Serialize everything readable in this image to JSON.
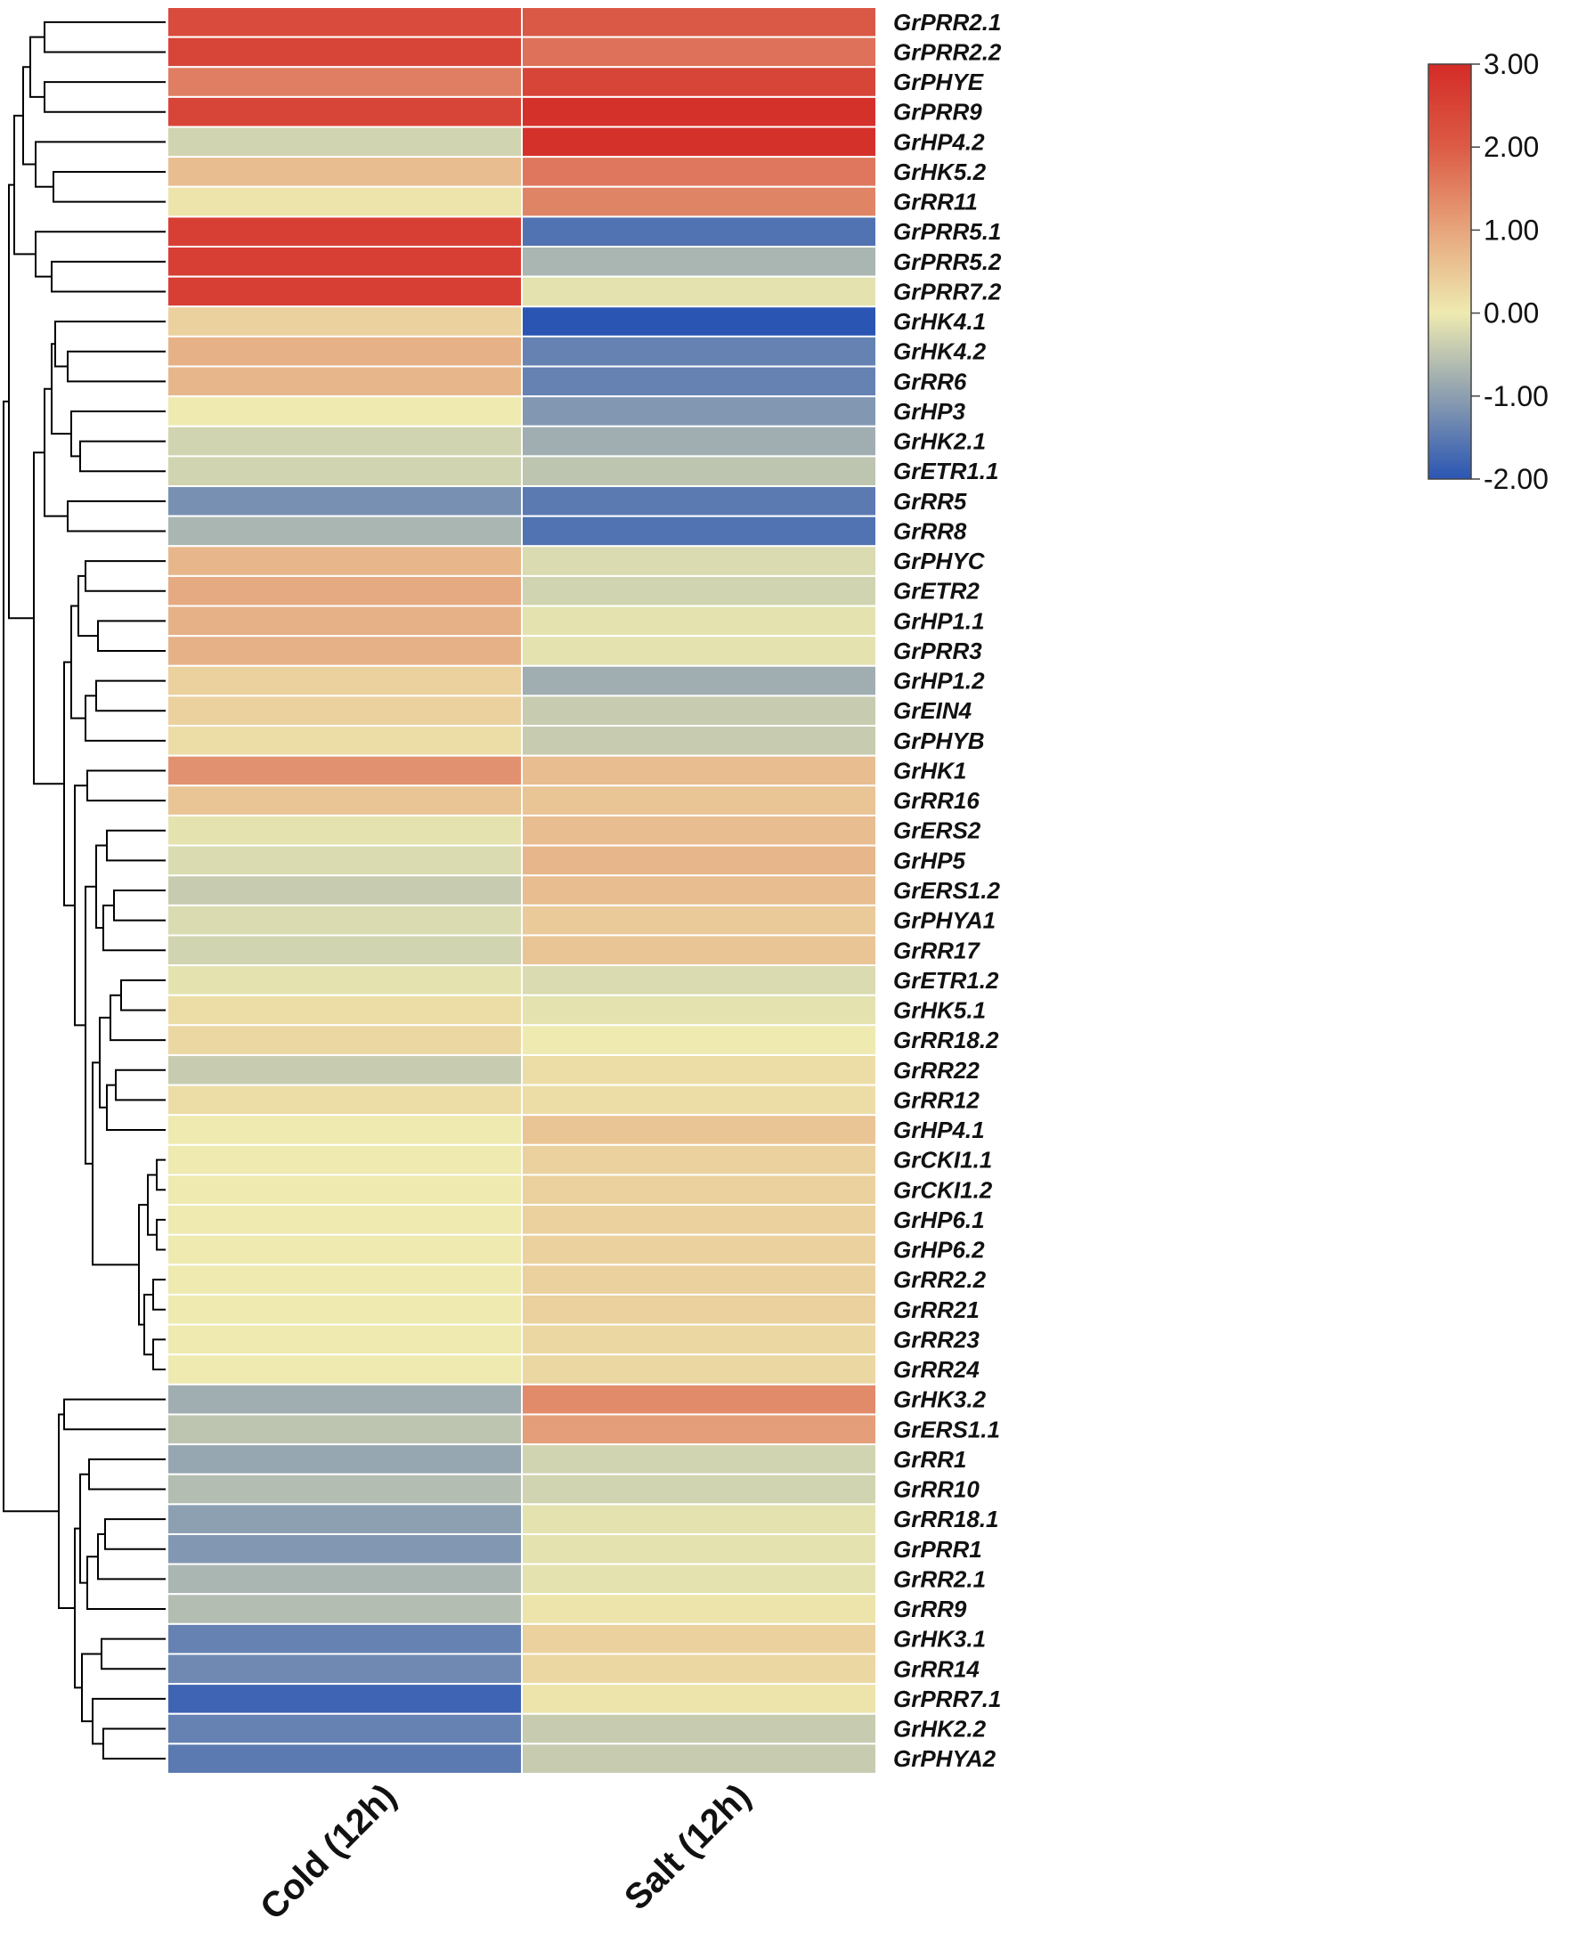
{
  "chart_data": {
    "type": "heatmap",
    "title": "",
    "columns": [
      "Cold (12h)",
      "Salt (12h)"
    ],
    "rows": [
      "GrPRR2.1",
      "GrPRR2.2",
      "GrPHYE",
      "GrPRR9",
      "GrHP4.2",
      "GrHK5.2",
      "GrRR11",
      "GrPRR5.1",
      "GrPRR5.2",
      "GrPRR7.2",
      "GrHK4.1",
      "GrHK4.2",
      "GrRR6",
      "GrHP3",
      "GrHK2.1",
      "GrETR1.1",
      "GrRR5",
      "GrRR8",
      "GrPHYC",
      "GrETR2",
      "GrHP1.1",
      "GrPRR3",
      "GrHP1.2",
      "GrEIN4",
      "GrPHYB",
      "GrHK1",
      "GrRR16",
      "GrERS2",
      "GrHP5",
      "GrERS1.2",
      "GrPHYA1",
      "GrRR17",
      "GrETR1.2",
      "GrHK5.1",
      "GrRR18.2",
      "GrRR22",
      "GrRR12",
      "GrHP4.1",
      "GrCKI1.1",
      "GrCKI1.2",
      "GrHP6.1",
      "GrHP6.2",
      "GrRR2.2",
      "GrRR21",
      "GrRR23",
      "GrRR24",
      "GrHK3.2",
      "GrERS1.1",
      "GrRR1",
      "GrRR10",
      "GrRR18.1",
      "GrPRR1",
      "GrRR2.1",
      "GrRR9",
      "GrHK3.1",
      "GrRR14",
      "GrPRR7.1",
      "GrHK2.2",
      "GrPHYA2"
    ],
    "values": [
      [
        2.5,
        2.3
      ],
      [
        2.6,
        1.9
      ],
      [
        1.7,
        2.6
      ],
      [
        2.6,
        2.9
      ],
      [
        -0.3,
        2.9
      ],
      [
        0.7,
        1.8
      ],
      [
        0.1,
        1.6
      ],
      [
        2.7,
        -1.6
      ],
      [
        2.7,
        -0.7
      ],
      [
        2.7,
        -0.1
      ],
      [
        0.4,
        -2.0
      ],
      [
        0.9,
        -1.4
      ],
      [
        0.8,
        -1.4
      ],
      [
        0.0,
        -1.1
      ],
      [
        -0.3,
        -0.8
      ],
      [
        -0.3,
        -0.5
      ],
      [
        -1.2,
        -1.5
      ],
      [
        -0.7,
        -1.6
      ],
      [
        0.8,
        -0.2
      ],
      [
        1.0,
        -0.3
      ],
      [
        0.9,
        -0.1
      ],
      [
        0.9,
        -0.1
      ],
      [
        0.4,
        -0.8
      ],
      [
        0.4,
        -0.4
      ],
      [
        0.2,
        -0.4
      ],
      [
        1.4,
        0.7
      ],
      [
        0.6,
        0.6
      ],
      [
        -0.1,
        0.7
      ],
      [
        -0.2,
        0.8
      ],
      [
        -0.4,
        0.7
      ],
      [
        -0.2,
        0.5
      ],
      [
        -0.3,
        0.6
      ],
      [
        -0.1,
        -0.2
      ],
      [
        0.2,
        -0.1
      ],
      [
        0.3,
        0.0
      ],
      [
        -0.4,
        0.2
      ],
      [
        0.2,
        0.2
      ],
      [
        0.0,
        0.6
      ],
      [
        0.0,
        0.4
      ],
      [
        0.0,
        0.4
      ],
      [
        0.0,
        0.4
      ],
      [
        0.0,
        0.4
      ],
      [
        0.0,
        0.4
      ],
      [
        0.0,
        0.4
      ],
      [
        0.0,
        0.3
      ],
      [
        0.0,
        0.3
      ],
      [
        -0.8,
        1.5
      ],
      [
        -0.5,
        1.2
      ],
      [
        -0.9,
        -0.3
      ],
      [
        -0.6,
        -0.3
      ],
      [
        -1.0,
        -0.1
      ],
      [
        -1.1,
        -0.1
      ],
      [
        -0.7,
        -0.1
      ],
      [
        -0.6,
        0.1
      ],
      [
        -1.4,
        0.4
      ],
      [
        -1.3,
        0.3
      ],
      [
        -1.8,
        0.1
      ],
      [
        -1.4,
        -0.4
      ],
      [
        -1.5,
        -0.4
      ]
    ],
    "color_scale": {
      "min": -2.0,
      "max": 3.0,
      "colors": [
        "#2a55b3",
        "#eeeab0",
        "#d42b26"
      ],
      "ticks": [
        "3.00",
        "2.00",
        "1.00",
        "0.00",
        "-1.00",
        "-2.00"
      ]
    },
    "dendrogram": "row clustering tree on left"
  }
}
